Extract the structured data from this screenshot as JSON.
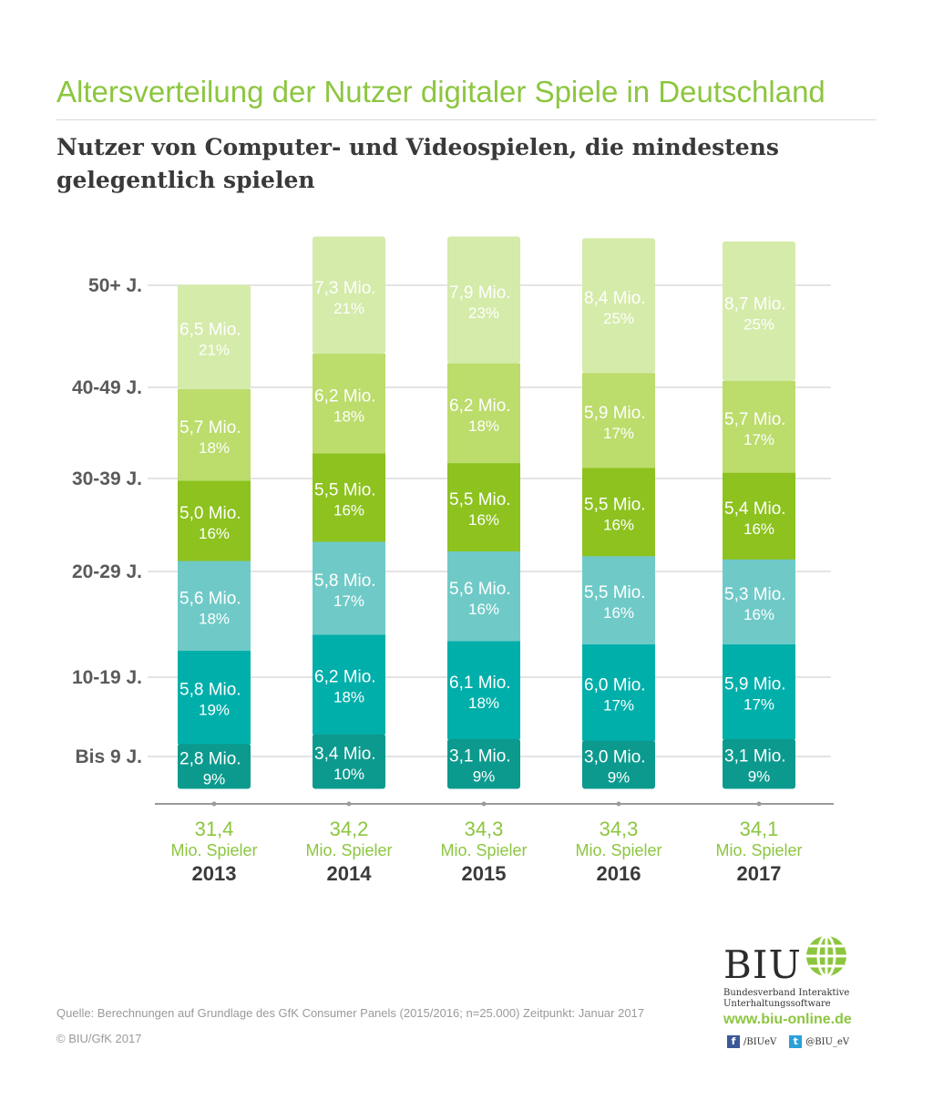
{
  "header": {
    "title": "Altersverteilung der Nutzer digitaler Spiele in Deutschland",
    "subtitle": "Nutzer von Computer- und Videospielen, die mindestens gelegentlich spielen"
  },
  "chart_data": {
    "type": "bar",
    "stacked": true,
    "categories": [
      "2013",
      "2014",
      "2015",
      "2016",
      "2017"
    ],
    "totals": [
      "31,4",
      "34,2",
      "34,3",
      "34,3",
      "34,1"
    ],
    "total_unit": "Mio. Spieler",
    "value_unit": "Mio.",
    "percent_unit": "%",
    "age_groups": [
      "Bis 9 J.",
      "10-19 J.",
      "20-29 J.",
      "30-39 J.",
      "40-49 J.",
      "50+ J."
    ],
    "series": [
      {
        "name": "Bis 9 J.",
        "color": "#0c9a8e",
        "values": [
          2.8,
          3.4,
          3.1,
          3.0,
          3.1
        ],
        "labels": [
          "2,8",
          "3,4",
          "3,1",
          "3,0",
          "3,1"
        ],
        "percents": [
          "9",
          "10",
          "9",
          "9",
          "9"
        ]
      },
      {
        "name": "10-19 J.",
        "color": "#00afaa",
        "values": [
          5.8,
          6.2,
          6.1,
          6.0,
          5.9
        ],
        "labels": [
          "5,8",
          "6,2",
          "6,1",
          "6,0",
          "5,9"
        ],
        "percents": [
          "19",
          "18",
          "18",
          "17",
          "17"
        ]
      },
      {
        "name": "20-29 J.",
        "color": "#6fcac7",
        "values": [
          5.6,
          5.8,
          5.6,
          5.5,
          5.3
        ],
        "labels": [
          "5,6",
          "5,8",
          "5,6",
          "5,5",
          "5,3"
        ],
        "percents": [
          "18",
          "17",
          "16",
          "16",
          "16"
        ]
      },
      {
        "name": "30-39 J.",
        "color": "#8dc21f",
        "values": [
          5.0,
          5.5,
          5.5,
          5.5,
          5.4
        ],
        "labels": [
          "5,0",
          "5,5",
          "5,5",
          "5,5",
          "5,4"
        ],
        "percents": [
          "16",
          "16",
          "16",
          "16",
          "16"
        ]
      },
      {
        "name": "40-49 J.",
        "color": "#bcdc6c",
        "values": [
          5.7,
          6.2,
          6.2,
          5.9,
          5.7
        ],
        "labels": [
          "5,7",
          "6,2",
          "6,2",
          "5,9",
          "5,7"
        ],
        "percents": [
          "18",
          "18",
          "18",
          "17",
          "17"
        ]
      },
      {
        "name": "50+ J.",
        "color": "#d5ebaa",
        "values": [
          6.5,
          7.3,
          7.9,
          8.4,
          8.7
        ],
        "labels": [
          "6,5",
          "7,3",
          "7,9",
          "8,4",
          "8,7"
        ],
        "percents": [
          "21",
          "21",
          "23",
          "25",
          "25"
        ]
      }
    ],
    "colors": {
      "grid": "#dcdcdc",
      "axis": "#9a9a9a",
      "label_text": "#ffffff",
      "age_text": "#5a5a5a",
      "total_text": "#8cc63f",
      "year_text": "#3a3a3a"
    }
  },
  "footer": {
    "source": "Quelle: Berechnungen auf Grundlage des GfK Consumer Panels (2015/2016; n=25.000) Zeitpunkt: Januar 2017",
    "copyright": "© BIU/GfK 2017"
  },
  "logo": {
    "name": "BIU",
    "org_line1": "Bundesverband Interaktive",
    "org_line2": "Unterhaltungssoftware",
    "website": "www.biu-online.de",
    "facebook": "/BIUeV",
    "twitter": "@BIU_eV",
    "facebook_icon": "facebook-icon",
    "twitter_icon": "twitter-icon"
  }
}
